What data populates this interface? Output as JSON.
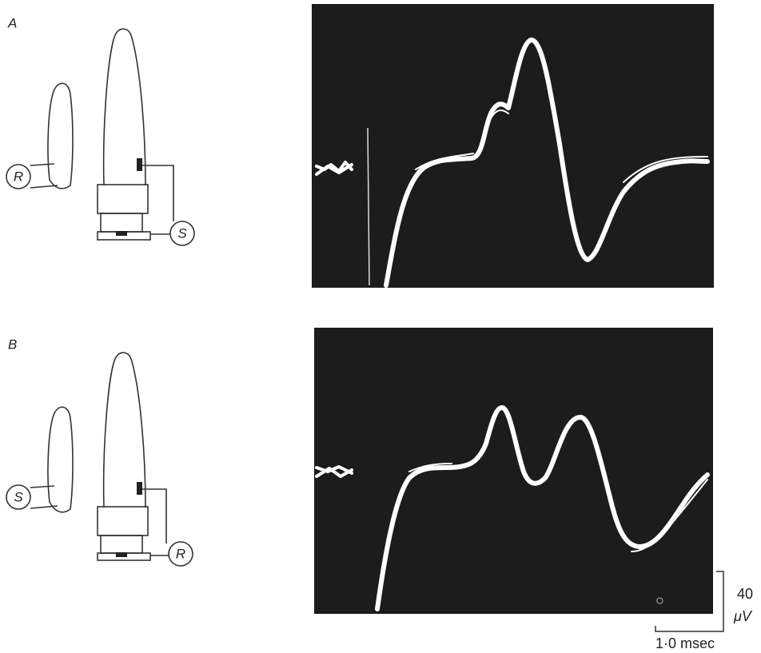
{
  "panels": [
    {
      "label": "A",
      "diagram_labels": [
        "R",
        "S"
      ]
    },
    {
      "label": "B",
      "diagram_labels": [
        "S",
        "R"
      ]
    }
  ],
  "scale_bar": {
    "amplitude": 40,
    "amplitude_unit": "μV",
    "time": "1·0 msec"
  }
}
